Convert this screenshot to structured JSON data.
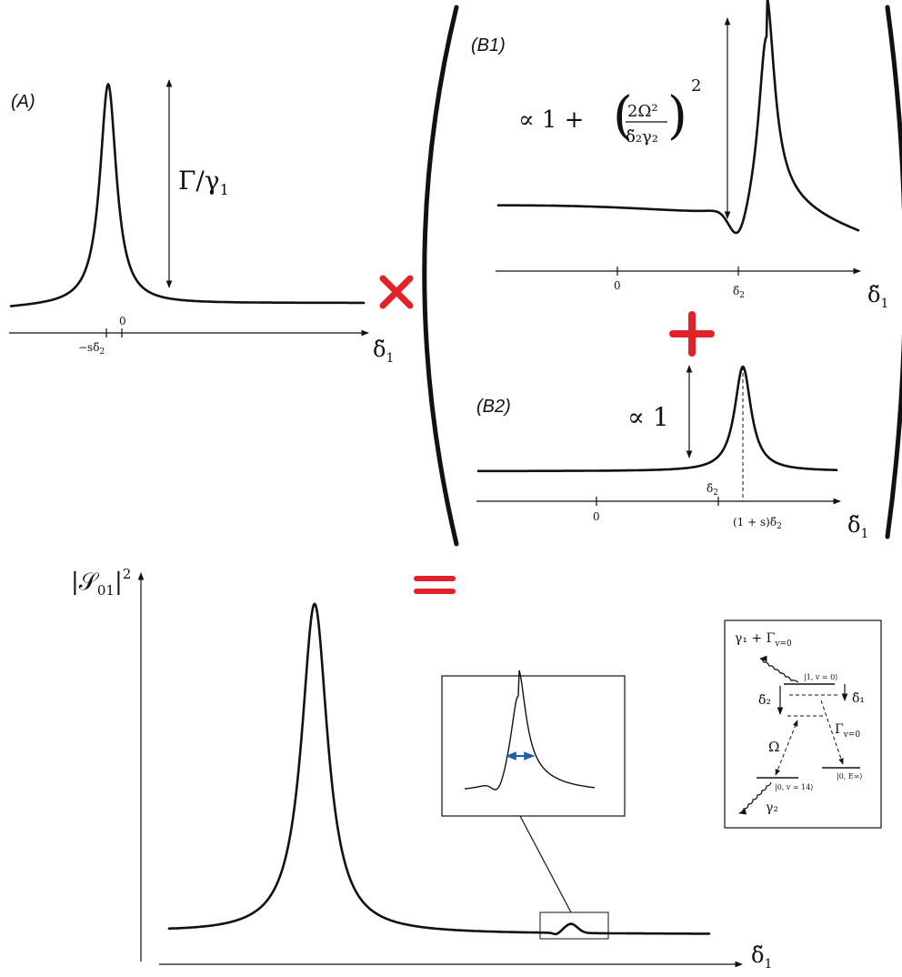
{
  "panels": {
    "a_label": "(A)",
    "b1_label": "(B1)",
    "b2_label": "(B2)"
  },
  "operators": {
    "times": "×",
    "plus": "+",
    "equals": "="
  },
  "colors": {
    "operator": "#e2222a",
    "arrow_blue": "#1f5fa8",
    "line": "#111111"
  },
  "axis_labels": {
    "delta1": "δ̃",
    "delta1_sub": "1",
    "y_main": "|𝒮",
    "y_main_sub": "01",
    "y_main_tail": "|",
    "y_main_sup": "2"
  },
  "ticks": {
    "a_zero": "0",
    "a_shift": "−sδ̃",
    "a_shift_sub": "2",
    "b1_zero": "0",
    "b1_delta": "δ̃",
    "b1_delta_sub": "2",
    "b2_zero": "0",
    "b2_delta": "δ̃",
    "b2_delta_sub": "2",
    "b2_peak": "(1 + s)δ̃",
    "b2_peak_sub": "2"
  },
  "annotations": {
    "a_height": "Γ/γ",
    "a_height_sub": "1",
    "b1_prefix": "∝ 1 + ",
    "b1_num": "2Ω²",
    "b1_den": "δ̃₂γ₂",
    "b1_sup": "2",
    "b2_height": "∝ 1"
  },
  "level_scheme": {
    "decay_top": "γ₁ + Γ",
    "decay_top_sub": "v=0",
    "state_top": "|1, v = 0⟩",
    "delta1": "δ̃₁",
    "delta2": "δ̃₂",
    "omega": "Ω",
    "gamma_v0": "Γ",
    "gamma_v0_sub": "v=0",
    "state_bottom_left": "|0, v = 14⟩",
    "state_bottom_right": "|0, E∞⟩",
    "gamma2": "γ₂"
  }
}
